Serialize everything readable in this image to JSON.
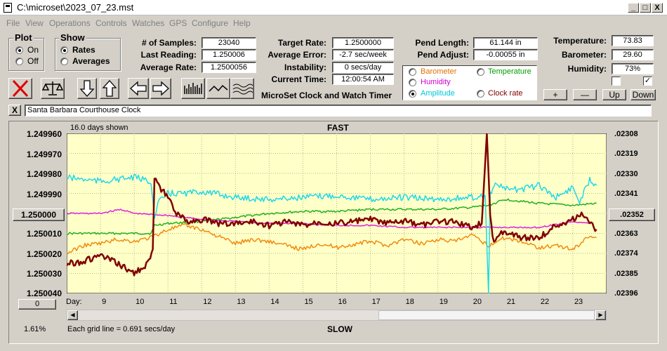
{
  "window": {
    "title": "C:\\microset\\2023_07_23.mst",
    "min_label": "_",
    "max_label": "□",
    "close_label": "X"
  },
  "menu": [
    "File",
    "View",
    "Operations",
    "Controls",
    "Watches",
    "GPS",
    "Configure",
    "Help"
  ],
  "plot_group": {
    "label": "Plot",
    "on_label": "On",
    "off_label": "Off",
    "selected": "On"
  },
  "show_group": {
    "label": "Show",
    "rates_label": "Rates",
    "averages_label": "Averages",
    "selected": "Rates"
  },
  "stats": {
    "samples_label": "# of Samples:",
    "samples": "23040",
    "last_label": "Last Reading:",
    "last": "1.250006",
    "avg_rate_label": "Average Rate:",
    "avg_rate": "1.2500056",
    "target_label": "Target Rate:",
    "target": "1.2500000",
    "avg_err_label": "Average Error:",
    "avg_err": "-2.7 sec/week",
    "instab_label": "Instability:",
    "instab": "0 secs/day",
    "time_label": "Current Time:",
    "time": "12:00:54 AM",
    "pend_len_label": "Pend Length:",
    "pend_len": "61.144 in",
    "pend_adj_label": "Pend Adjust:",
    "pend_adj": "-0.00055 in",
    "temp_label": "Temperature:",
    "temp": "73.83",
    "baro_label": "Barometer:",
    "baro": "29.60",
    "hum_label": "Humidity:",
    "hum": "73%"
  },
  "app_name": "MicroSet Clock and Watch Timer",
  "legend": [
    {
      "label": "Barometer",
      "color": "#e07000",
      "selected": false
    },
    {
      "label": "Temperature",
      "color": "#00a000",
      "selected": false
    },
    {
      "label": "Humidity",
      "color": "#d000d0",
      "selected": false
    },
    {
      "label": "Amplitude",
      "color": "#00c8d8",
      "selected": true
    },
    {
      "label": "Clock rate",
      "color": "#800000",
      "selected": false
    }
  ],
  "checkboxes": [
    {
      "checked": false,
      "mark": ""
    },
    {
      "checked": true,
      "mark": "✓"
    }
  ],
  "small_buttons": {
    "plus": "+",
    "minus": "—",
    "up": "Up",
    "down": "Down"
  },
  "close_x_label": "X",
  "clock_name": "Santa Barbara Courthouse Clock",
  "plot": {
    "days_shown": "16.0 days shown",
    "fast_label": "FAST",
    "slow_label": "SLOW",
    "day_label": "Day:",
    "grid_note": "Each grid line = 0.691 secs/day",
    "center_button": "1.250000",
    "right_button": ".02352",
    "zero_button": "0",
    "percent": "1.61%"
  },
  "chart_data": {
    "type": "line",
    "x_days": [
      9,
      10,
      11,
      12,
      13,
      14,
      15,
      16,
      17,
      18,
      19,
      20,
      21,
      22,
      23
    ],
    "x_tick_labels": [
      "9",
      "10",
      "11",
      "12",
      "13",
      "14",
      "15",
      "16",
      "17",
      "18",
      "19",
      "20",
      "21",
      "22",
      "23"
    ],
    "xlim": [
      8.0,
      24.0
    ],
    "y_left_ticks": [
      "1.249960",
      "1.249970",
      "1.249980",
      "1.249990",
      "",
      "1.250010",
      "1.250020",
      "1.250030",
      "1.250040"
    ],
    "ylim_left": [
      1.24996,
      1.25004
    ],
    "y_right_ticks": [
      ".02308",
      ".02319",
      ".02330",
      ".02341",
      "",
      ".02363",
      ".02374",
      ".02385",
      ".02396"
    ],
    "ylim_right": [
      0.02308,
      0.02396
    ],
    "grid": true,
    "background": "#ffffc8",
    "series": [
      {
        "key": "clock",
        "color": "#800000",
        "width": 2.5,
        "x": [
          8.0,
          8.5,
          9.0,
          9.5,
          10.0,
          10.4,
          10.55,
          10.6,
          10.8,
          11.0,
          11.3,
          11.6,
          12.0,
          12.5,
          13.0,
          13.5,
          14.0,
          14.5,
          15.0,
          15.5,
          16.0,
          16.5,
          17.0,
          17.5,
          18.0,
          18.5,
          19.0,
          19.5,
          20.0,
          20.3,
          20.45,
          20.55,
          20.62,
          20.7,
          20.8,
          21.0,
          21.5,
          22.0,
          22.5,
          23.0,
          23.3,
          23.5,
          23.7
        ],
        "y": [
          1.250025,
          1.250024,
          1.250021,
          1.250025,
          1.25003,
          1.250025,
          1.250018,
          1.249983,
          1.249988,
          1.249992,
          1.250001,
          1.250004,
          1.250003,
          1.250005,
          1.250005,
          1.250004,
          1.250006,
          1.250004,
          1.250006,
          1.250004,
          1.250005,
          1.250004,
          1.250003,
          1.250005,
          1.250004,
          1.250006,
          1.250004,
          1.250004,
          1.250007,
          1.250005,
          1.24996,
          1.25,
          1.250012,
          1.250015,
          1.25001,
          1.250009,
          1.250012,
          1.250012,
          1.250006,
          1.250003,
          1.25,
          1.250005,
          1.250008
        ]
      },
      {
        "key": "amplitude",
        "color": "#20d8e8",
        "width": 1.5,
        "x": [
          8.0,
          9.0,
          10.0,
          10.5,
          10.6,
          10.7,
          11.0,
          11.5,
          12.0,
          13.0,
          14.0,
          15.0,
          16.0,
          17.0,
          18.0,
          19.0,
          20.0,
          20.4,
          20.5,
          20.55,
          20.7,
          21.0,
          21.5,
          22.0,
          22.5,
          23.0,
          23.2,
          23.5,
          23.7
        ],
        "y": [
          1.249982,
          1.249984,
          1.249982,
          1.249984,
          1.250003,
          1.249995,
          1.24999,
          1.24999,
          1.249989,
          1.249992,
          1.249993,
          1.249992,
          1.249991,
          1.249993,
          1.249992,
          1.249993,
          1.249992,
          1.249991,
          1.25004,
          1.24999,
          1.249985,
          1.249988,
          1.249988,
          1.249986,
          1.249992,
          1.249987,
          1.249994,
          1.249983,
          1.249986
        ]
      },
      {
        "key": "temperature",
        "color": "#20b020",
        "width": 1.5,
        "x": [
          8.0,
          9.0,
          10.0,
          10.5,
          10.6,
          11.0,
          12.0,
          13.0,
          14.0,
          15.0,
          16.0,
          17.0,
          18.0,
          19.0,
          20.0,
          20.5,
          21.0,
          22.0,
          23.0,
          23.7
        ],
        "y": [
          1.25001,
          1.25001,
          1.25001,
          1.25001,
          1.250006,
          1.250005,
          1.250004,
          1.250002,
          1.25,
          1.249999,
          1.249999,
          1.249998,
          1.249998,
          1.249998,
          1.249997,
          1.249996,
          1.249993,
          1.249995,
          1.249996,
          1.249995
        ]
      },
      {
        "key": "humidity",
        "color": "#e020e0",
        "width": 1.5,
        "x": [
          8.0,
          9.0,
          9.6,
          10.0,
          11.0,
          12.0,
          13.0,
          14.0,
          15.0,
          16.0,
          17.0,
          18.0,
          19.0,
          20.0,
          20.5,
          21.0,
          22.0,
          23.0,
          23.5
        ],
        "y": [
          1.25,
          1.25,
          1.249998,
          1.25,
          1.250001,
          1.250003,
          1.250004,
          1.250005,
          1.250005,
          1.250006,
          1.250006,
          1.250007,
          1.250007,
          1.250007,
          1.250007,
          1.250007,
          1.250007,
          1.250004,
          1.250005
        ]
      },
      {
        "key": "barometer",
        "color": "#f08c10",
        "width": 1.5,
        "x": [
          8.0,
          8.5,
          9.0,
          9.5,
          10.0,
          10.5,
          11.0,
          11.5,
          12.0,
          13.0,
          13.5,
          14.0,
          14.5,
          15.0,
          15.5,
          16.0,
          17.0,
          17.5,
          18.0,
          18.5,
          19.0,
          19.5,
          20.0,
          20.5,
          21.0,
          21.5,
          22.0,
          22.5,
          23.0,
          23.5,
          23.7
        ],
        "y": [
          1.25002,
          1.250016,
          1.250015,
          1.250013,
          1.250014,
          1.250012,
          1.250008,
          1.250006,
          1.250008,
          1.250015,
          1.250013,
          1.250014,
          1.250016,
          1.250018,
          1.250015,
          1.250017,
          1.250014,
          1.250016,
          1.250013,
          1.250015,
          1.250013,
          1.250014,
          1.250011,
          1.250016,
          1.250012,
          1.250014,
          1.250017,
          1.250016,
          1.250018,
          1.250011,
          1.250012
        ]
      }
    ]
  }
}
